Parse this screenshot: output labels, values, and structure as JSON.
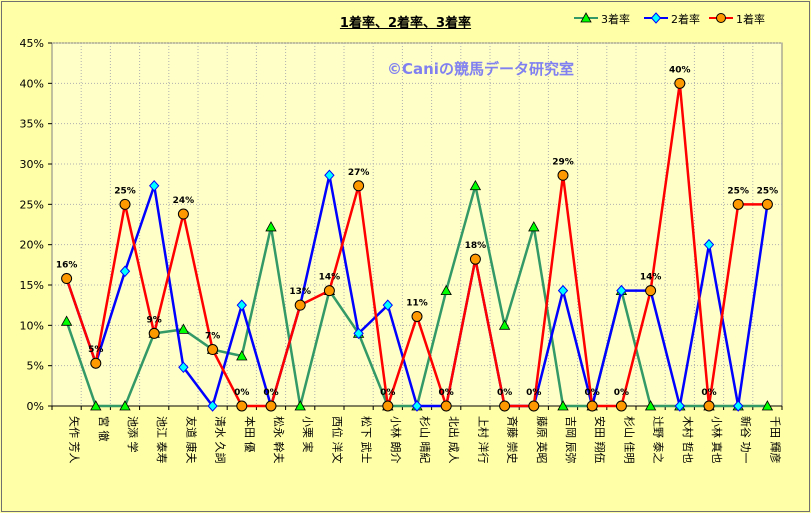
{
  "chart_data": {
    "type": "line",
    "title": "1着率、2着率、3着率",
    "watermark": "©Caniの競馬データ研究室",
    "ylim": [
      0,
      45
    ],
    "yticks": [
      "0%",
      "5%",
      "10%",
      "15%",
      "20%",
      "25%",
      "30%",
      "35%",
      "40%",
      "45%"
    ],
    "categories": [
      "矢作 芳人",
      "宮 徹",
      "池添 学",
      "池江 泰寿",
      "友道 康夫",
      "清水 久詞",
      "本田 優",
      "松永 幹夫",
      "小栗 実",
      "西位 洋文",
      "松下 武士",
      "小林 朗介",
      "杉山 晴紀",
      "北出 成人",
      "上村 洋行",
      "斉藤 崇史",
      "藤原 英昭",
      "吉岡 辰弥",
      "安田 翔伍",
      "杉山 佳明",
      "辻野 泰之",
      "木村 哲也",
      "小林 真也",
      "新谷 功一",
      "千田 輝彦"
    ],
    "series": [
      {
        "name": "3着率",
        "color": "#339966",
        "marker": "triangle",
        "values": [
          10.5,
          0,
          0,
          9,
          9.5,
          7,
          6.2,
          22.2,
          0,
          14.3,
          9,
          0,
          0,
          14.3,
          27.3,
          10,
          22.2,
          0,
          0,
          14.3,
          0,
          0,
          0,
          0,
          0
        ]
      },
      {
        "name": "2着率",
        "color": "#0000ff",
        "marker": "diamond",
        "values": [
          15.8,
          5.3,
          16.7,
          27.3,
          4.8,
          0,
          12.5,
          0,
          12.5,
          28.6,
          9,
          12.5,
          0,
          0,
          18.2,
          0,
          0,
          14.3,
          0,
          14.3,
          14.3,
          0,
          20,
          0,
          25
        ]
      },
      {
        "name": "1着率",
        "color": "#ff0000",
        "marker": "circle",
        "values": [
          15.8,
          5.3,
          25,
          9,
          23.8,
          7,
          0,
          0,
          12.5,
          14.3,
          27.3,
          0,
          11.1,
          0,
          18.2,
          0,
          0,
          28.6,
          0,
          0,
          14.3,
          40,
          0,
          25,
          25
        ]
      }
    ],
    "data_labels_1st": [
      "16%",
      "5%",
      "25%",
      "9%",
      "24%",
      "7%",
      "0%",
      "0%",
      "13%",
      "14%",
      "27%",
      "0%",
      "11%",
      "0%",
      "18%",
      "0%",
      "0%",
      "29%",
      "0%",
      "0%",
      "14%",
      "40%",
      "0%",
      "25%",
      "25%"
    ],
    "legend_position": "top-right"
  }
}
